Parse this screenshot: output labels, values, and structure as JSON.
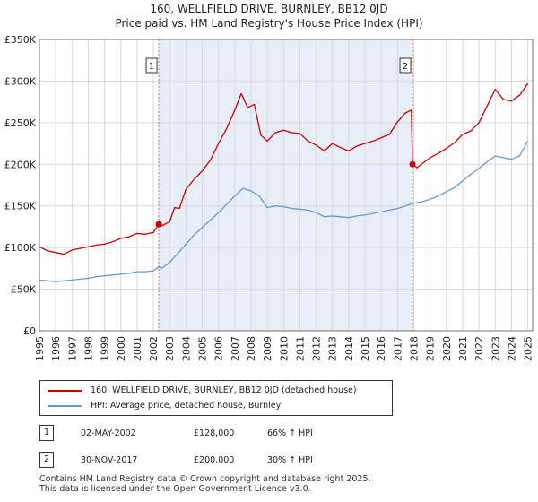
{
  "title": "160, WELLFIELD DRIVE, BURNLEY, BB12 0JD",
  "subtitle": "Price paid vs. HM Land Registry's House Price Index (HPI)",
  "colors": {
    "property": "#cc0000",
    "hpi": "#6699cc",
    "shade": "#e8eef8",
    "marker_line": "#e06666"
  },
  "chart_data": {
    "type": "line",
    "title": "160, WELLFIELD DRIVE, BURNLEY, BB12 0JD",
    "xlabel": "",
    "ylabel": "",
    "xlim": [
      1995,
      2025.3
    ],
    "ylim": [
      0,
      350000
    ],
    "y_ticks": [
      {
        "v": 0,
        "label": "£0"
      },
      {
        "v": 50000,
        "label": "£50K"
      },
      {
        "v": 100000,
        "label": "£100K"
      },
      {
        "v": 150000,
        "label": "£150K"
      },
      {
        "v": 200000,
        "label": "£200K"
      },
      {
        "v": 250000,
        "label": "£250K"
      },
      {
        "v": 300000,
        "label": "£300K"
      },
      {
        "v": 350000,
        "label": "£350K"
      }
    ],
    "x_ticks": [
      "1995",
      "1996",
      "1997",
      "1998",
      "1999",
      "2000",
      "2001",
      "2002",
      "2003",
      "2004",
      "2005",
      "2006",
      "2007",
      "2008",
      "2009",
      "2010",
      "2011",
      "2012",
      "2013",
      "2014",
      "2015",
      "2016",
      "2017",
      "2018",
      "2019",
      "2020",
      "2021",
      "2022",
      "2023",
      "2024",
      "2025"
    ],
    "grid": true,
    "shaded_region": [
      2002.33,
      2017.92
    ],
    "series": [
      {
        "name": "160, WELLFIELD DRIVE, BURNLEY, BB12 0JD (detached house)",
        "color": "#cc0000",
        "x": [
          1995.0,
          1995.5,
          1996.0,
          1996.5,
          1997.0,
          1997.5,
          1998.0,
          1998.5,
          1999.0,
          1999.5,
          2000.0,
          2000.5,
          2001.0,
          2001.5,
          2002.0,
          2002.33,
          2002.5,
          2003.0,
          2003.3,
          2003.6,
          2004.0,
          2004.5,
          2005.0,
          2005.5,
          2006.0,
          2006.5,
          2007.0,
          2007.4,
          2007.8,
          2008.2,
          2008.6,
          2009.0,
          2009.5,
          2010.0,
          2010.5,
          2011.0,
          2011.5,
          2012.0,
          2012.5,
          2013.0,
          2013.5,
          2014.0,
          2014.5,
          2015.0,
          2015.5,
          2016.0,
          2016.5,
          2017.0,
          2017.5,
          2017.85,
          2017.92,
          2018.2,
          2018.6,
          2019.0,
          2019.5,
          2020.0,
          2020.5,
          2021.0,
          2021.5,
          2022.0,
          2022.5,
          2022.8,
          2023.0,
          2023.5,
          2024.0,
          2024.5,
          2025.0
        ],
        "values": [
          101000,
          96000,
          94000,
          92000,
          97000,
          99000,
          101000,
          103000,
          104000,
          107000,
          111000,
          113000,
          117000,
          116000,
          118000,
          128000,
          126000,
          131000,
          148000,
          147000,
          170000,
          182000,
          192000,
          205000,
          225000,
          243000,
          265000,
          285000,
          268000,
          272000,
          235000,
          228000,
          238000,
          241000,
          238000,
          237000,
          228000,
          223000,
          216000,
          225000,
          220000,
          216000,
          222000,
          225000,
          228000,
          232000,
          236000,
          251000,
          262000,
          265000,
          200000,
          196000,
          202000,
          208000,
          213000,
          219000,
          226000,
          236000,
          240000,
          250000,
          270000,
          282000,
          290000,
          278000,
          276000,
          283000,
          297000
        ]
      },
      {
        "name": "HPI: Average price, detached house, Burnley",
        "color": "#6699cc",
        "x": [
          1995.0,
          1995.5,
          1996.0,
          1996.5,
          1997.0,
          1997.5,
          1998.0,
          1998.5,
          1999.0,
          1999.5,
          2000.0,
          2000.5,
          2001.0,
          2001.5,
          2002.0,
          2002.33,
          2002.5,
          2003.0,
          2003.5,
          2004.0,
          2004.5,
          2005.0,
          2005.5,
          2006.0,
          2006.5,
          2007.0,
          2007.5,
          2008.0,
          2008.5,
          2009.0,
          2009.5,
          2010.0,
          2010.5,
          2011.0,
          2011.5,
          2012.0,
          2012.5,
          2013.0,
          2013.5,
          2014.0,
          2014.5,
          2015.0,
          2015.5,
          2016.0,
          2016.5,
          2017.0,
          2017.5,
          2017.92,
          2018.5,
          2019.0,
          2019.5,
          2020.0,
          2020.5,
          2021.0,
          2021.5,
          2022.0,
          2022.5,
          2023.0,
          2023.5,
          2024.0,
          2024.5,
          2025.0
        ],
        "values": [
          61000,
          60000,
          59000,
          60000,
          61000,
          62000,
          63000,
          65000,
          66000,
          67000,
          68000,
          69000,
          71000,
          71000,
          72000,
          77000,
          75000,
          82000,
          93000,
          104000,
          115000,
          124000,
          133000,
          142000,
          152000,
          162000,
          171000,
          168000,
          162000,
          148000,
          150000,
          149000,
          147000,
          146000,
          145000,
          142000,
          137000,
          138000,
          137000,
          136000,
          138000,
          139000,
          141000,
          143000,
          145000,
          147000,
          150000,
          153000,
          155000,
          158000,
          162000,
          167000,
          172000,
          180000,
          188000,
          195000,
          203000,
          210000,
          208000,
          206000,
          210000,
          228000
        ]
      }
    ],
    "annotations": [
      {
        "label": "1",
        "x": 2002.33,
        "value": 128000
      },
      {
        "label": "2",
        "x": 2017.92,
        "value": 200000
      }
    ]
  },
  "legend": {
    "property": "160, WELLFIELD DRIVE, BURNLEY, BB12 0JD (detached house)",
    "hpi": "HPI: Average price, detached house, Burnley"
  },
  "transactions": [
    {
      "num": "1",
      "date": "02-MAY-2002",
      "price": "£128,000",
      "change": "66% ↑ HPI"
    },
    {
      "num": "2",
      "date": "30-NOV-2017",
      "price": "£200,000",
      "change": "30% ↑ HPI"
    }
  ],
  "footer": {
    "line1": "Contains HM Land Registry data © Crown copyright and database right 2025.",
    "line2": "This data is licensed under the Open Government Licence v3.0."
  }
}
